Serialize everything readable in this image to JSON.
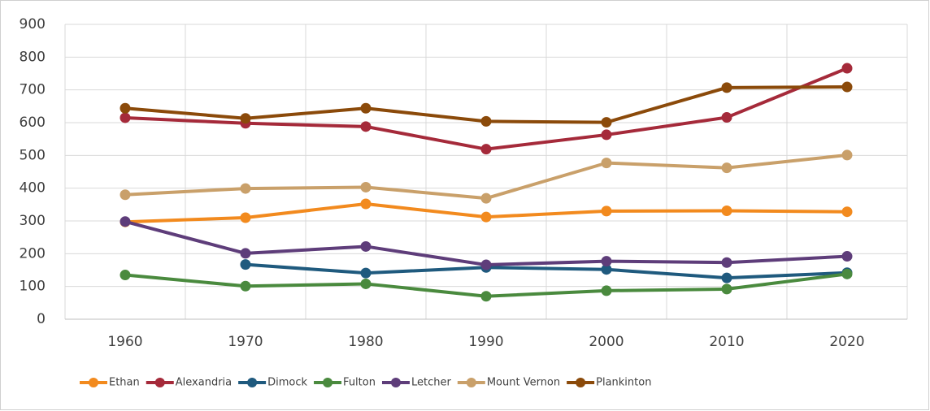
{
  "chart_data": {
    "type": "line",
    "categories": [
      "1960",
      "1970",
      "1980",
      "1990",
      "2000",
      "2010",
      "2020"
    ],
    "series": [
      {
        "name": "Ethan",
        "color": "#f28a1e",
        "values": [
          297,
          310,
          352,
          312,
          330,
          331,
          328
        ]
      },
      {
        "name": "Alexandria",
        "color": "#a52a3a",
        "values": [
          615,
          598,
          588,
          519,
          563,
          616,
          766
        ]
      },
      {
        "name": "Dimock",
        "color": "#1f5a7e",
        "values": [
          null,
          167,
          141,
          158,
          152,
          126,
          142
        ]
      },
      {
        "name": "Fulton",
        "color": "#4a8a3e",
        "values": [
          135,
          101,
          108,
          70,
          87,
          92,
          138
        ]
      },
      {
        "name": "Letcher",
        "color": "#5e3d7a",
        "values": [
          298,
          201,
          222,
          166,
          177,
          173,
          192
        ]
      },
      {
        "name": "Mount Vernon",
        "color": "#c9a06a",
        "values": [
          380,
          399,
          403,
          369,
          477,
          462,
          501
        ]
      },
      {
        "name": "Plankinton",
        "color": "#8b4a0a",
        "values": [
          644,
          613,
          644,
          604,
          601,
          707,
          709
        ]
      }
    ],
    "ylim": [
      0,
      900
    ],
    "yticks": [
      0,
      100,
      200,
      300,
      400,
      500,
      600,
      700,
      800,
      900
    ],
    "grid": true,
    "legend": "bottom"
  }
}
